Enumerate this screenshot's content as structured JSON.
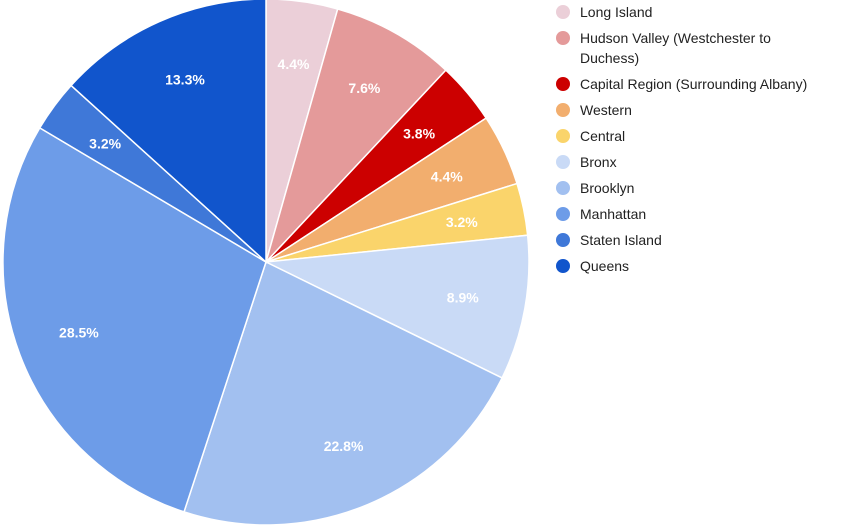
{
  "chart_data": {
    "type": "pie",
    "title": "",
    "legend_position": "right",
    "start_angle_deg": 0,
    "direction": "clockwise",
    "slices": [
      {
        "name": "Long Island",
        "value": 4.4,
        "label": "4.4%",
        "color": "#ebcfd8"
      },
      {
        "name": "Hudson Valley (Westchester to Duchess)",
        "legend_lines": [
          "Hudson Valley (Westchester to",
          "Duchess)"
        ],
        "value": 7.6,
        "label": "7.6%",
        "color": "#e49a9a"
      },
      {
        "name": "Capital Region (Surrounding Albany)",
        "value": 3.8,
        "label": "3.8%",
        "color": "#cc0000"
      },
      {
        "name": "Western",
        "value": 4.4,
        "label": "4.4%",
        "color": "#f2ae6e"
      },
      {
        "name": "Central",
        "value": 3.2,
        "label": "3.2%",
        "color": "#fad46b"
      },
      {
        "name": "Bronx",
        "value": 8.9,
        "label": "8.9%",
        "color": "#c9daf6"
      },
      {
        "name": "Brooklyn",
        "value": 22.8,
        "label": "22.8%",
        "color": "#a2c0f0"
      },
      {
        "name": "Manhattan",
        "value": 28.5,
        "label": "28.5%",
        "color": "#6d9ce8"
      },
      {
        "name": "Staten Island",
        "value": 3.2,
        "label": "3.2%",
        "color": "#3f78d8"
      },
      {
        "name": "Queens",
        "value": 13.3,
        "label": "13.3%",
        "color": "#1155cc"
      }
    ]
  }
}
